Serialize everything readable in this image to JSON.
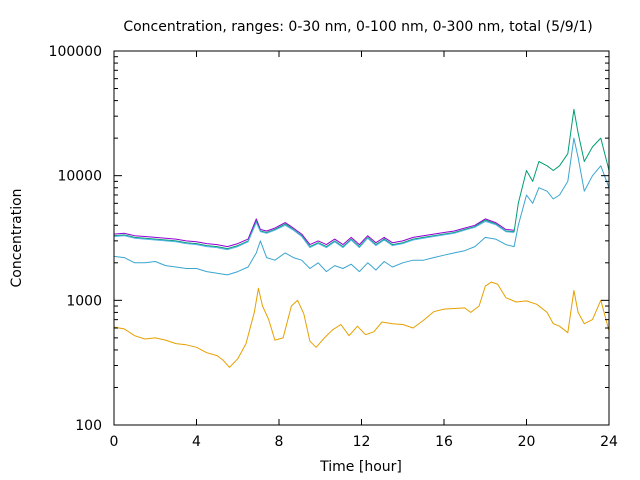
{
  "chart_data": {
    "type": "line",
    "title": "Concentration, ranges: 0-30 nm, 0-100 nm, 0-300 nm, total (5/9/1)",
    "xlabel": "Time [hour]",
    "ylabel": "Concentration",
    "xlim": [
      0,
      24
    ],
    "ylim": [
      100,
      100000
    ],
    "yscale": "log",
    "grid": false,
    "legend": "none",
    "x_ticks": [
      0,
      4,
      8,
      12,
      16,
      20,
      24
    ],
    "x_tick_labels": [
      "0",
      "4",
      "8",
      "12",
      "16",
      "20",
      "24"
    ],
    "y_ticks": [
      100,
      1000,
      10000,
      100000
    ],
    "y_tick_labels": [
      "100",
      "1000",
      "10000",
      "100000"
    ],
    "series": [
      {
        "color": "#e6a000",
        "x": [
          0,
          0.5,
          1,
          1.5,
          2,
          2.5,
          3,
          3.5,
          4,
          4.5,
          5,
          5.3,
          5.6,
          6,
          6.4,
          6.8,
          7.0,
          7.2,
          7.5,
          7.8,
          8.2,
          8.6,
          8.9,
          9.2,
          9.5,
          9.8,
          10.2,
          10.6,
          11,
          11.4,
          11.8,
          12.2,
          12.6,
          13,
          13.5,
          14,
          14.5,
          15,
          15.5,
          16,
          16.5,
          17,
          17.3,
          17.7,
          18,
          18.3,
          18.6,
          19,
          19.5,
          20,
          20.5,
          21,
          21.3,
          21.6,
          22,
          22.3,
          22.5,
          22.8,
          23.2,
          23.6,
          24
        ],
        "y": [
          610,
          590,
          520,
          490,
          500,
          480,
          450,
          440,
          420,
          380,
          360,
          330,
          290,
          340,
          450,
          800,
          1250,
          900,
          700,
          480,
          500,
          900,
          1000,
          780,
          470,
          420,
          500,
          580,
          640,
          520,
          620,
          530,
          560,
          670,
          650,
          640,
          600,
          690,
          810,
          850,
          860,
          870,
          800,
          900,
          1300,
          1400,
          1350,
          1050,
          970,
          990,
          930,
          800,
          650,
          620,
          550,
          1200,
          800,
          650,
          700,
          1000,
          570
        ]
      },
      {
        "color": "#3aa5d0",
        "x": [
          0,
          0.5,
          1,
          1.5,
          2,
          2.5,
          3,
          3.5,
          4,
          4.5,
          5,
          5.5,
          6,
          6.5,
          6.9,
          7.1,
          7.4,
          7.8,
          8.3,
          8.7,
          9.1,
          9.5,
          9.9,
          10.3,
          10.7,
          11.1,
          11.5,
          11.9,
          12.3,
          12.7,
          13.1,
          13.5,
          14,
          14.5,
          15,
          15.5,
          16,
          16.5,
          17,
          17.5,
          18,
          18.5,
          19,
          19.4,
          19.6,
          20,
          20.3,
          20.6,
          21,
          21.3,
          21.6,
          22,
          22.3,
          22.5,
          22.8,
          23.2,
          23.6,
          24
        ],
        "y": [
          2250,
          2200,
          2000,
          2000,
          2050,
          1900,
          1850,
          1800,
          1800,
          1700,
          1650,
          1600,
          1700,
          1850,
          2400,
          3000,
          2200,
          2100,
          2400,
          2200,
          2100,
          1800,
          2000,
          1700,
          1900,
          1800,
          1950,
          1700,
          2000,
          1750,
          2050,
          1850,
          2000,
          2100,
          2100,
          2200,
          2300,
          2400,
          2500,
          2700,
          3200,
          3100,
          2800,
          2700,
          4000,
          7000,
          6000,
          8000,
          7500,
          6500,
          7000,
          9000,
          20000,
          14000,
          7500,
          10000,
          12000,
          8000
        ]
      },
      {
        "color": "#9400d3",
        "x": [
          0,
          0.5,
          1,
          1.5,
          2,
          2.5,
          3,
          3.5,
          4,
          4.5,
          5,
          5.5,
          6,
          6.5,
          6.9,
          7.1,
          7.4,
          7.8,
          8.3,
          8.7,
          9.1,
          9.5,
          9.9,
          10.3,
          10.7,
          11.1,
          11.5,
          11.9,
          12.3,
          12.7,
          13.1,
          13.5,
          14,
          14.5,
          15,
          15.5,
          16,
          16.5,
          17,
          17.5,
          18,
          18.5,
          19,
          19.4
        ],
        "y": [
          3400,
          3450,
          3300,
          3250,
          3200,
          3150,
          3100,
          3000,
          2950,
          2850,
          2800,
          2700,
          2850,
          3100,
          4500,
          3700,
          3600,
          3800,
          4200,
          3800,
          3400,
          2800,
          3000,
          2800,
          3100,
          2800,
          3200,
          2800,
          3300,
          2900,
          3200,
          2900,
          3000,
          3200,
          3300,
          3400,
          3500,
          3600,
          3800,
          4000,
          4500,
          4200,
          3700,
          3650
        ]
      },
      {
        "color": "#009e73",
        "x": [
          0,
          0.5,
          1,
          1.5,
          2,
          2.5,
          3,
          3.5,
          4,
          4.5,
          5,
          5.5,
          6,
          6.5,
          6.9,
          7.1,
          7.4,
          7.8,
          8.3,
          8.7,
          9.1,
          9.5,
          9.9,
          10.3,
          10.7,
          11.1,
          11.5,
          11.9,
          12.3,
          12.7,
          13.1,
          13.5,
          14,
          14.5,
          15,
          15.5,
          16,
          16.5,
          17,
          17.5,
          18,
          18.5,
          19,
          19.4,
          19.6,
          20,
          20.3,
          20.6,
          21,
          21.3,
          21.6,
          22,
          22.3,
          22.5,
          22.8,
          23.2,
          23.6,
          24
        ],
        "y": [
          3300,
          3350,
          3200,
          3150,
          3100,
          3050,
          3000,
          2900,
          2850,
          2750,
          2700,
          2600,
          2750,
          3000,
          4300,
          3600,
          3500,
          3700,
          4100,
          3700,
          3300,
          2700,
          2900,
          2700,
          3000,
          2700,
          3100,
          2700,
          3200,
          2800,
          3100,
          2800,
          2900,
          3100,
          3200,
          3300,
          3400,
          3500,
          3700,
          3900,
          4400,
          4100,
          3600,
          3550,
          6000,
          11000,
          9000,
          13000,
          12000,
          11000,
          12000,
          15000,
          34000,
          22000,
          13000,
          17000,
          20000,
          11000
        ]
      },
      {
        "color": "#56b4e9",
        "x": [
          0,
          0.5,
          1,
          1.5,
          2,
          2.5,
          3,
          3.5,
          4,
          4.5,
          5,
          5.5,
          6,
          6.5,
          6.9,
          7.1,
          7.4,
          7.8,
          8.3,
          8.7,
          9.1,
          9.5,
          9.9,
          10.3,
          10.7,
          11.1,
          11.5,
          11.9,
          12.3,
          12.7,
          13.1,
          13.5,
          14,
          14.5,
          15,
          15.5,
          16,
          16.5,
          17,
          17.5,
          18,
          18.5,
          19,
          19.4
        ],
        "y": [
          3250,
          3300,
          3150,
          3100,
          3050,
          3000,
          2950,
          2850,
          2800,
          2700,
          2650,
          2550,
          2700,
          2950,
          4200,
          3550,
          3450,
          3650,
          4000,
          3650,
          3250,
          2650,
          2850,
          2650,
          2950,
          2650,
          3050,
          2650,
          3150,
          2750,
          3050,
          2750,
          2850,
          3050,
          3150,
          3250,
          3350,
          3450,
          3650,
          3850,
          4300,
          4050,
          3550,
          3500
        ]
      }
    ]
  }
}
